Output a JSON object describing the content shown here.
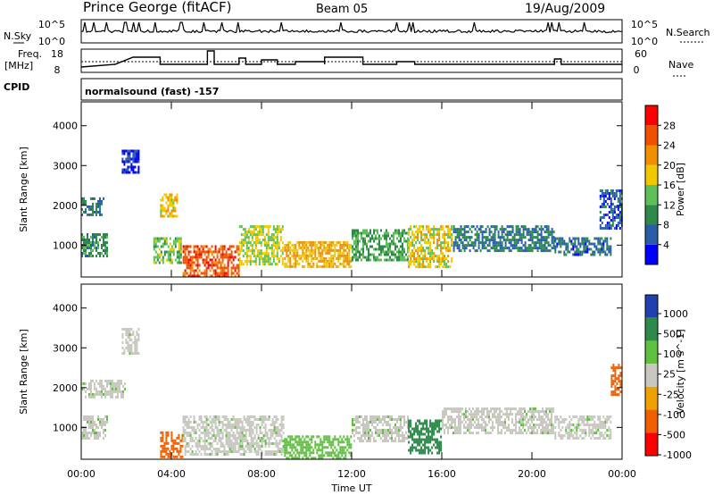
{
  "header": {
    "station": "Prince George (fitACF)",
    "beam": "Beam 05",
    "date": "19/Aug/2009"
  },
  "top_panels": {
    "nsky_label": "N.Sky",
    "nsearch_label": "N.Search",
    "noise_ticks": [
      "10^5",
      "10^0"
    ],
    "freq_label": "Freq.",
    "freq_unit": "[MHz]",
    "freq_ticks": [
      "18",
      "8"
    ],
    "nave_ticks": [
      "60",
      "0"
    ],
    "nave_label": "Nave",
    "cpid_label": "CPID",
    "cpid_text": "normalsound (fast) -157"
  },
  "colors": {
    "power_scale": [
      "#0000ff",
      "#2a5ca8",
      "#2e8a4a",
      "#5fc05a",
      "#f0c800",
      "#f09000",
      "#f05000",
      "#ff0000"
    ],
    "velocity_scale": [
      "#2040b0",
      "#2e8a4a",
      "#60c040",
      "#c8c8c0",
      "#f0a000",
      "#f06000",
      "#ff0000"
    ]
  },
  "chart_data": [
    {
      "type": "heatmap",
      "title": "",
      "xlabel": "Time UT",
      "ylabel": "Slant Range [km]",
      "x_ticks": [
        "00:00",
        "04:00",
        "08:00",
        "12:00",
        "16:00",
        "20:00",
        "00:00"
      ],
      "y_ticks": [
        "1000",
        "2000",
        "3000",
        "4000"
      ],
      "ylim": [
        200,
        4600
      ],
      "colorbar": {
        "label": "Power [dB]",
        "ticks": [
          "4",
          "8",
          "12",
          "16",
          "20",
          "24",
          "28"
        ],
        "range": [
          0,
          32
        ]
      },
      "regions": [
        {
          "t": [
            0.0,
            1.2
          ],
          "r": [
            700,
            1300
          ],
          "v": 12
        },
        {
          "t": [
            0.0,
            1.0
          ],
          "r": [
            1700,
            2200
          ],
          "v": 10
        },
        {
          "t": [
            1.8,
            2.6
          ],
          "r": [
            2800,
            3400
          ],
          "v": 6
        },
        {
          "t": [
            3.5,
            4.3
          ],
          "r": [
            1700,
            2300
          ],
          "v": 20
        },
        {
          "t": [
            3.2,
            4.5
          ],
          "r": [
            500,
            1200
          ],
          "v": 16
        },
        {
          "t": [
            4.5,
            7.0
          ],
          "r": [
            200,
            1000
          ],
          "v": 28
        },
        {
          "t": [
            7.0,
            9.0
          ],
          "r": [
            500,
            1500
          ],
          "v": 18
        },
        {
          "t": [
            9.0,
            12.0
          ],
          "r": [
            400,
            1100
          ],
          "v": 22
        },
        {
          "t": [
            12.0,
            14.5
          ],
          "r": [
            600,
            1400
          ],
          "v": 14
        },
        {
          "t": [
            14.5,
            16.5
          ],
          "r": [
            400,
            1500
          ],
          "v": 20
        },
        {
          "t": [
            16.5,
            21.0
          ],
          "r": [
            800,
            1500
          ],
          "v": 10
        },
        {
          "t": [
            21.0,
            23.5
          ],
          "r": [
            700,
            1200
          ],
          "v": 9
        },
        {
          "t": [
            23.0,
            24.0
          ],
          "r": [
            1400,
            2400
          ],
          "v": 8
        }
      ]
    },
    {
      "type": "heatmap",
      "title": "",
      "xlabel": "Time UT",
      "ylabel": "Slant Range [km]",
      "x_ticks": [
        "00:00",
        "04:00",
        "08:00",
        "12:00",
        "16:00",
        "20:00",
        "00:00"
      ],
      "y_ticks": [
        "1000",
        "2000",
        "3000",
        "4000"
      ],
      "ylim": [
        200,
        4600
      ],
      "colorbar": {
        "label": "Velocity [m s^-1]",
        "ticks": [
          "1000",
          "500",
          "100",
          "25",
          "-25",
          "-100",
          "-500",
          "-1000"
        ]
      },
      "regions": [
        {
          "t": [
            0.0,
            1.2
          ],
          "r": [
            700,
            1300
          ],
          "v": 0
        },
        {
          "t": [
            0.0,
            2.0
          ],
          "r": [
            1700,
            2200
          ],
          "v": 0
        },
        {
          "t": [
            1.8,
            2.6
          ],
          "r": [
            2800,
            3500
          ],
          "v": 0
        },
        {
          "t": [
            3.5,
            4.5
          ],
          "r": [
            200,
            900
          ],
          "v": -200
        },
        {
          "t": [
            4.5,
            9.0
          ],
          "r": [
            300,
            1300
          ],
          "v": 0
        },
        {
          "t": [
            9.0,
            12.0
          ],
          "r": [
            200,
            800
          ],
          "v": 80
        },
        {
          "t": [
            12.0,
            14.5
          ],
          "r": [
            600,
            1300
          ],
          "v": 0
        },
        {
          "t": [
            14.5,
            16.0
          ],
          "r": [
            300,
            1200
          ],
          "v": 300
        },
        {
          "t": [
            16.0,
            21.0
          ],
          "r": [
            800,
            1500
          ],
          "v": 0
        },
        {
          "t": [
            21.0,
            23.5
          ],
          "r": [
            700,
            1300
          ],
          "v": 0
        },
        {
          "t": [
            23.5,
            24.0
          ],
          "r": [
            1800,
            2600
          ],
          "v": -150
        }
      ]
    }
  ]
}
